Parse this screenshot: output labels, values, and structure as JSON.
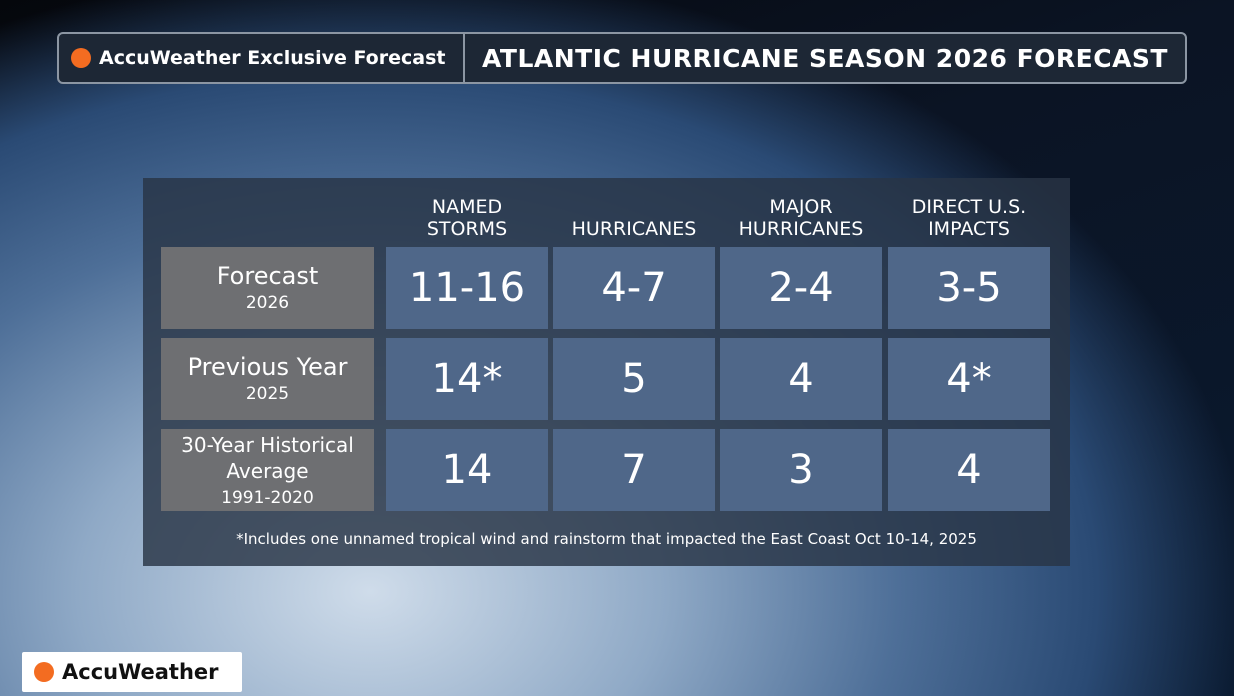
{
  "header": {
    "badge": "AccuWeather Exclusive Forecast",
    "title": "ATLANTIC HURRICANE SEASON 2026 FORECAST"
  },
  "table": {
    "columns": [
      "NAMED STORMS",
      "HURRICANES",
      "MAJOR HURRICANES",
      "DIRECT U.S. IMPACTS"
    ],
    "rows": [
      {
        "label": "Forecast",
        "sublabel": "2026",
        "cells": [
          "11-16",
          "4-7",
          "2-4",
          "3-5"
        ]
      },
      {
        "label": "Previous Year",
        "sublabel": "2025",
        "cells": [
          "14*",
          "5",
          "4",
          "4*"
        ]
      },
      {
        "label": "30-Year Historical Average",
        "sublabel": "1991-2020",
        "cells": [
          "14",
          "7",
          "3",
          "4"
        ]
      }
    ],
    "footnote": "*Includes one unnamed tropical wind and rainstorm that impacted the East Coast Oct 10-14, 2025"
  },
  "logo": "AccuWeather"
}
